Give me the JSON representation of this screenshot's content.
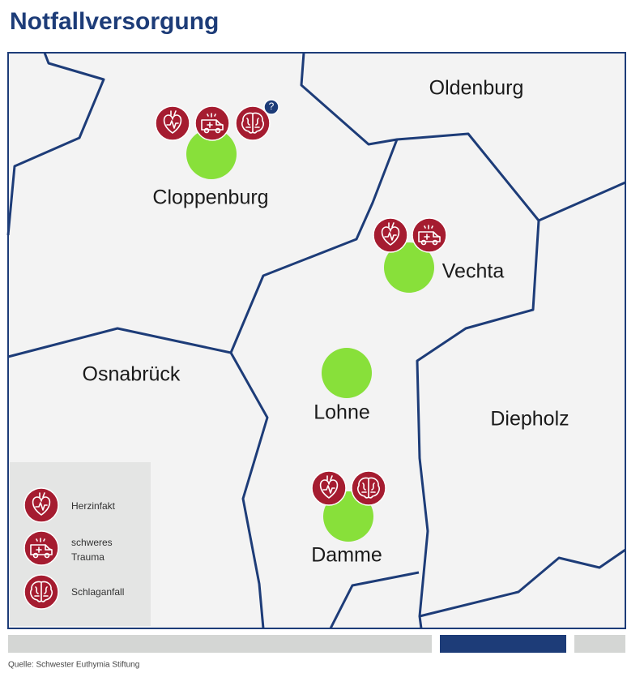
{
  "title": "Notfallversorgung",
  "regions": [
    {
      "label": "Oldenburg"
    },
    {
      "label": "Osnabrück"
    },
    {
      "label": "Diepholz"
    }
  ],
  "cities": [
    {
      "label": "Cloppenburg"
    },
    {
      "label": "Vechta"
    },
    {
      "label": "Lohne"
    },
    {
      "label": "Damme"
    }
  ],
  "note_marker": "?",
  "legend": [
    {
      "lines": [
        "Herzinfakt"
      ]
    },
    {
      "lines": [
        "schweres",
        "Trauma"
      ]
    },
    {
      "lines": [
        "Schlaganfall"
      ]
    }
  ],
  "source": "Quelle: Schwester Euthymia Stiftung"
}
